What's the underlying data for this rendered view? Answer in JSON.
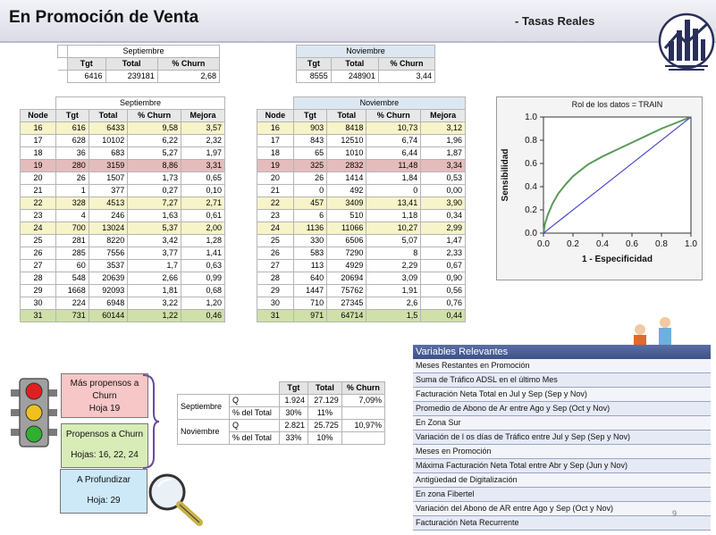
{
  "header": {
    "title": "En Promoción de Venta",
    "subtitle": "- Tasas Reales"
  },
  "summary_sep": {
    "caption": "Septiembre",
    "col1": "Tgt",
    "col2": "Total",
    "col3": "% Churn",
    "tgt": "6416",
    "total": "239181",
    "churn": "2,68"
  },
  "summary_nov": {
    "caption": "Noviembre",
    "col1": "Tgt",
    "col2": "Total",
    "col3": "% Churn",
    "tgt": "8555",
    "total": "248901",
    "churn": "3,44"
  },
  "nodes_sep": {
    "caption": "Septiembre",
    "headers": [
      "Node",
      "Tgt",
      "Total",
      "% Churn",
      "Mejora"
    ],
    "rows": [
      [
        "16",
        "616",
        "6433",
        "9,58",
        "3,57"
      ],
      [
        "17",
        "628",
        "10102",
        "6,22",
        "2,32"
      ],
      [
        "18",
        "36",
        "683",
        "5,27",
        "1,97"
      ],
      [
        "19",
        "280",
        "3159",
        "8,86",
        "3,31"
      ],
      [
        "20",
        "26",
        "1507",
        "1,73",
        "0,65"
      ],
      [
        "21",
        "1",
        "377",
        "0,27",
        "0,10"
      ],
      [
        "22",
        "328",
        "4513",
        "7,27",
        "2,71"
      ],
      [
        "23",
        "4",
        "246",
        "1,63",
        "0,61"
      ],
      [
        "24",
        "700",
        "13024",
        "5,37",
        "2,00"
      ],
      [
        "25",
        "281",
        "8220",
        "3,42",
        "1,28"
      ],
      [
        "26",
        "285",
        "7556",
        "3,77",
        "1,41"
      ],
      [
        "27",
        "60",
        "3537",
        "1,7",
        "0,63"
      ],
      [
        "28",
        "548",
        "20639",
        "2,66",
        "0,99"
      ],
      [
        "29",
        "1668",
        "92093",
        "1,81",
        "0,68"
      ],
      [
        "30",
        "224",
        "6948",
        "3,22",
        "1,20"
      ],
      [
        "31",
        "731",
        "60144",
        "1,22",
        "0,46"
      ]
    ]
  },
  "nodes_nov": {
    "caption": "Noviembre",
    "headers": [
      "Node",
      "Tgt",
      "Total",
      "% Churn",
      "Mejora"
    ],
    "rows": [
      [
        "16",
        "903",
        "8418",
        "10,73",
        "3,12"
      ],
      [
        "17",
        "843",
        "12510",
        "6,74",
        "1,96"
      ],
      [
        "18",
        "65",
        "1010",
        "6,44",
        "1,87"
      ],
      [
        "19",
        "325",
        "2832",
        "11,48",
        "3,34"
      ],
      [
        "20",
        "26",
        "1414",
        "1,84",
        "0,53"
      ],
      [
        "21",
        "0",
        "492",
        "0",
        "0,00"
      ],
      [
        "22",
        "457",
        "3409",
        "13,41",
        "3,90"
      ],
      [
        "23",
        "6",
        "510",
        "1,18",
        "0,34"
      ],
      [
        "24",
        "1136",
        "11066",
        "10,27",
        "2,99"
      ],
      [
        "25",
        "330",
        "6506",
        "5,07",
        "1,47"
      ],
      [
        "26",
        "583",
        "7290",
        "8",
        "2,33"
      ],
      [
        "27",
        "113",
        "4929",
        "2,29",
        "0,67"
      ],
      [
        "28",
        "640",
        "20694",
        "3,09",
        "0,90"
      ],
      [
        "29",
        "1447",
        "75762",
        "1,91",
        "0,56"
      ],
      [
        "30",
        "710",
        "27345",
        "2,6",
        "0,76"
      ],
      [
        "31",
        "971",
        "64714",
        "1,5",
        "0,44"
      ]
    ]
  },
  "row_styles": [
    "y",
    "",
    "",
    "r",
    "",
    "",
    "y",
    "",
    "y",
    "",
    "",
    "",
    "",
    "",
    "",
    "g"
  ],
  "chart_data": {
    "type": "line",
    "title": "Rol de los datos = TRAIN",
    "xlabel": "1 - Especificidad",
    "ylabel": "Sensibilidad",
    "xlim": [
      0,
      1
    ],
    "ylim": [
      0,
      1
    ],
    "x_ticks": [
      "0.0",
      "0.2",
      "0.4",
      "0.6",
      "0.8",
      "1.0"
    ],
    "y_ticks": [
      "0.0",
      "0.2",
      "0.4",
      "0.6",
      "0.8",
      "1.0"
    ],
    "series": [
      {
        "color": "#5a9a5a",
        "x": [
          0,
          0.01,
          0.03,
          0.06,
          0.1,
          0.15,
          0.2,
          0.3,
          0.4,
          0.5,
          0.6,
          0.7,
          0.8,
          0.9,
          1.0
        ],
        "y": [
          0,
          0.08,
          0.16,
          0.25,
          0.34,
          0.42,
          0.49,
          0.59,
          0.66,
          0.72,
          0.78,
          0.84,
          0.9,
          0.95,
          1.0
        ]
      },
      {
        "color": "#4a4ad0",
        "x": [
          0,
          1
        ],
        "y": [
          0,
          1
        ]
      }
    ]
  },
  "notes": {
    "n1_line1": "Más propensos a",
    "n1_line2": "Churn",
    "n1_line3": "Hoja 19",
    "n2_line1": "Propensos a Churn",
    "n2_line2": "Hojas:  16, 22, 24",
    "n3_line1": "A Profundizar",
    "n3_line2": "Hoja: 29"
  },
  "selected": {
    "headers": [
      "Tgt",
      "Total",
      "% Churn"
    ],
    "sep_label": "Septiembre",
    "nov_label": "Noviembre",
    "q_label": "Q",
    "pct_label": "% del Total",
    "sep_q": [
      "1.924",
      "27.129",
      "7,09%"
    ],
    "sep_pct": [
      "30%",
      "11%"
    ],
    "nov_q": [
      "2.821",
      "25.725",
      "10,97%"
    ],
    "nov_pct": [
      "33%",
      "10%"
    ]
  },
  "variables": {
    "title": "Variables Relevantes",
    "items": [
      "Meses Restantes en Promoción",
      "Suma de Tráfico ADSL en el último Mes",
      "Facturación Neta Total en Jul y Sep (Sep y Nov)",
      "Promedio de Abono de Ar entre Ago y Sep (Oct y Nov)",
      "En Zona Sur",
      "Variación de l os días de Tráfico entre Jul y Sep (Sep y Nov)",
      "Meses en Promoción",
      "Máxima Facturación Neta Total entre Abr y Sep (Jun y Nov)",
      "Antigüedad de Digitalización",
      "En zona Fibertel",
      "Variación del Abono de AR entre Ago y Sep (Oct y Nov)",
      "Facturación Neta Recurrente"
    ]
  },
  "page_number": "9"
}
